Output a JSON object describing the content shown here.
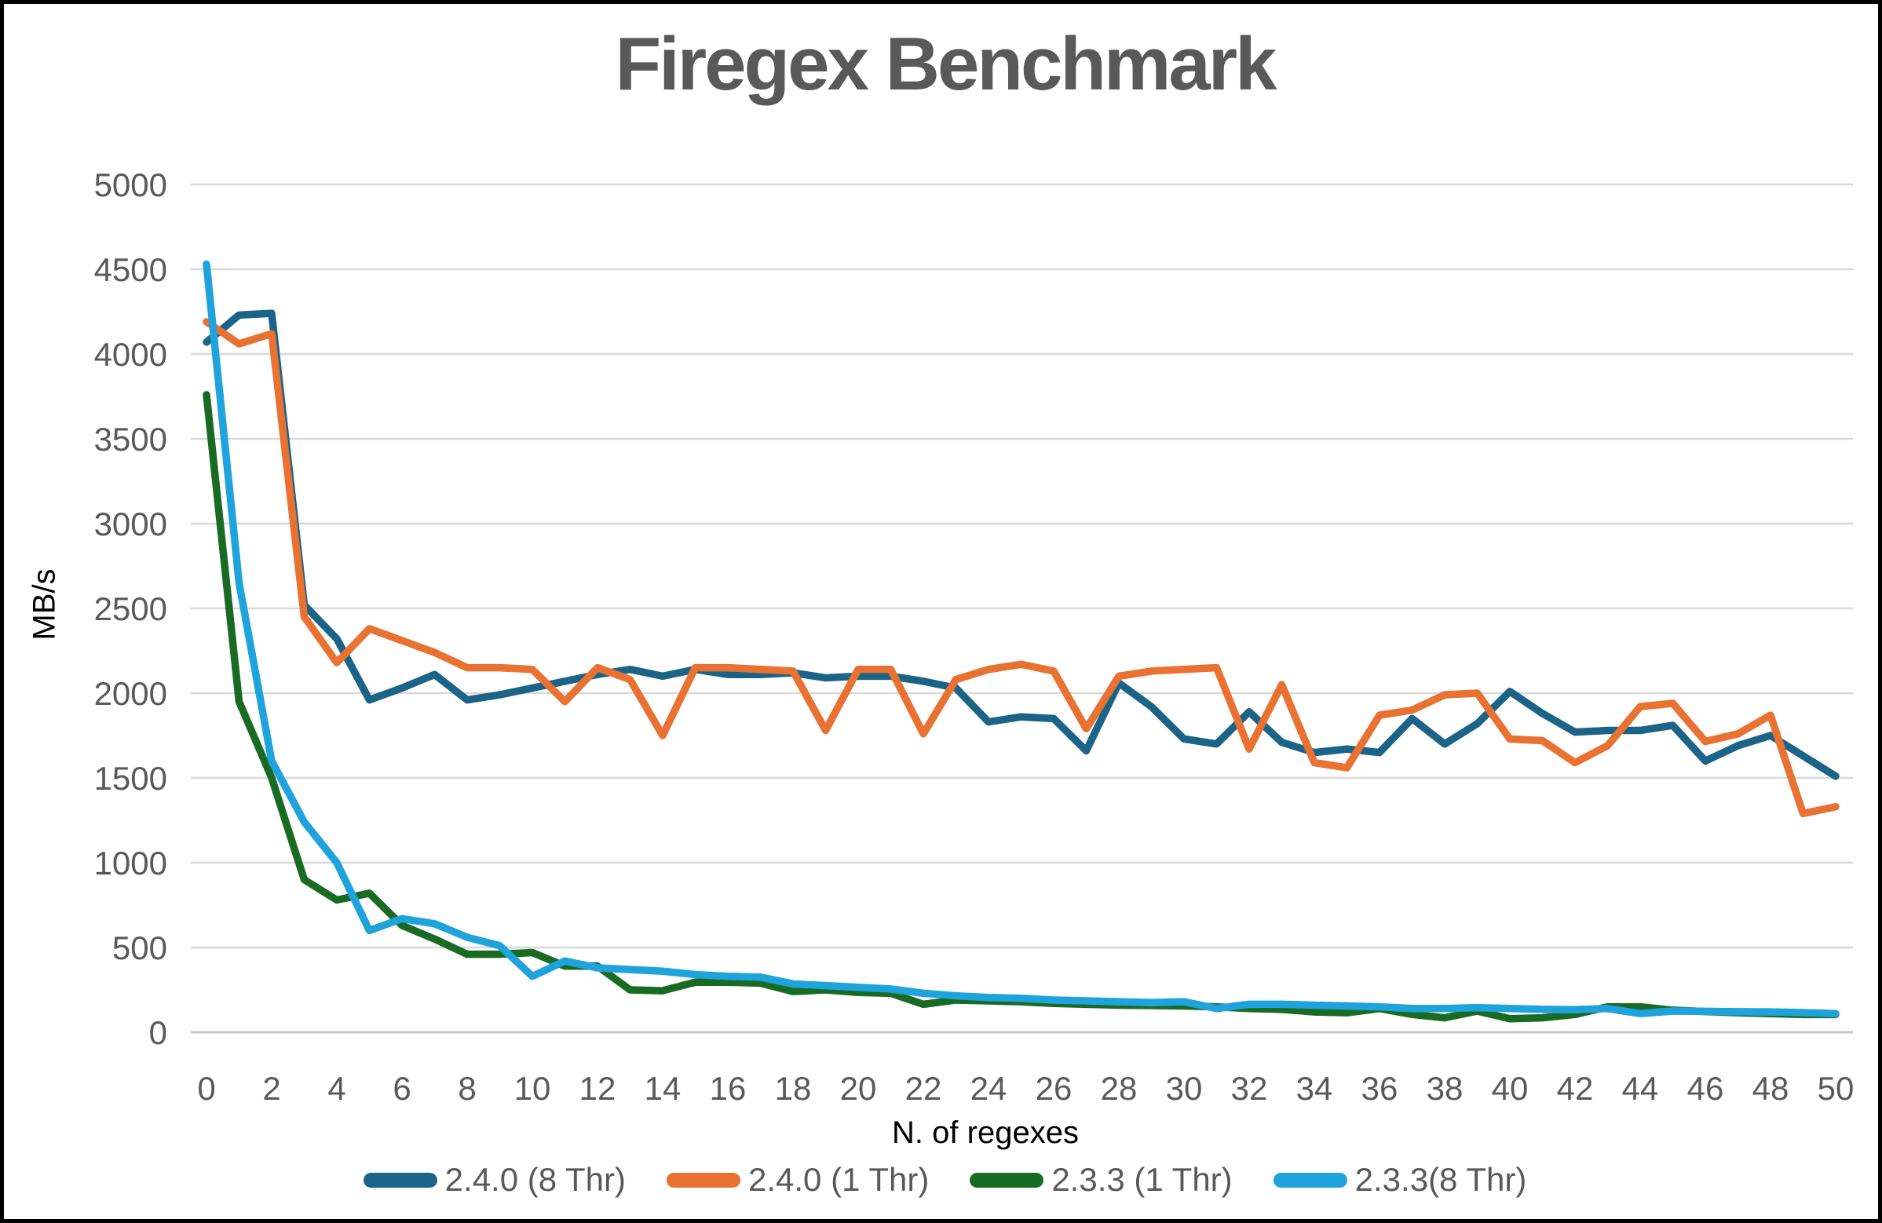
{
  "colors": {
    "background": "#ffffff",
    "border": "#000000",
    "gridline": "#d9d9d9",
    "axis_line": "#c6c6c6",
    "tick_label": "#595959",
    "title": "#595959",
    "axis_title": "#000000",
    "legend_label": "#595959"
  },
  "chart_data": {
    "type": "line",
    "title": "Firegex Benchmark",
    "xlabel": "N. of regexes",
    "ylabel": "MB/s",
    "ylim": [
      0,
      5000
    ],
    "y_tick_step": 500,
    "x_tick_step": 2,
    "grid": true,
    "legend_position": "bottom",
    "x": [
      0,
      1,
      2,
      3,
      4,
      5,
      6,
      7,
      8,
      9,
      10,
      11,
      12,
      13,
      14,
      15,
      16,
      17,
      18,
      19,
      20,
      21,
      22,
      23,
      24,
      25,
      26,
      27,
      28,
      29,
      30,
      31,
      32,
      33,
      34,
      35,
      36,
      37,
      38,
      39,
      40,
      41,
      42,
      43,
      44,
      45,
      46,
      47,
      48,
      49,
      50
    ],
    "series": [
      {
        "name": "2.4.0 (8 Thr)",
        "color": "#1B6487",
        "values": [
          4070,
          4230,
          4240,
          2520,
          2320,
          1960,
          2030,
          2110,
          1960,
          1990,
          2030,
          2070,
          2110,
          2140,
          2100,
          2140,
          2110,
          2110,
          2120,
          2090,
          2100,
          2100,
          2070,
          2030,
          1830,
          1860,
          1850,
          1660,
          2060,
          1920,
          1730,
          1700,
          1890,
          1710,
          1650,
          1670,
          1650,
          1850,
          1700,
          1820,
          2010,
          1880,
          1770,
          1780,
          1780,
          1810,
          1600,
          1690,
          1750,
          1630,
          1510
        ]
      },
      {
        "name": "2.4.0 (1 Thr)",
        "color": "#E97132",
        "values": [
          4190,
          4060,
          4120,
          2450,
          2180,
          2380,
          2310,
          2240,
          2150,
          2150,
          2140,
          1950,
          2150,
          2080,
          1750,
          2150,
          2150,
          2140,
          2130,
          1780,
          2140,
          2140,
          1760,
          2080,
          2140,
          2170,
          2130,
          1790,
          2100,
          2130,
          2140,
          2150,
          1670,
          2050,
          1590,
          1560,
          1870,
          1900,
          1990,
          2000,
          1730,
          1720,
          1590,
          1690,
          1920,
          1940,
          1715,
          1760,
          1870,
          1290,
          1330
        ]
      },
      {
        "name": "2.3.3 (1 Thr)",
        "color": "#196B24",
        "values": [
          3760,
          1950,
          1500,
          900,
          780,
          820,
          630,
          550,
          460,
          460,
          470,
          390,
          390,
          250,
          245,
          295,
          295,
          290,
          240,
          250,
          235,
          230,
          165,
          190,
          185,
          180,
          170,
          165,
          160,
          158,
          155,
          150,
          140,
          135,
          120,
          115,
          140,
          105,
          85,
          125,
          80,
          85,
          105,
          150,
          150,
          130,
          122,
          115,
          110,
          105,
          105
        ]
      },
      {
        "name": "2.3.3(8 Thr)",
        "color": "#1FA3DC",
        "values": [
          4530,
          2650,
          1600,
          1240,
          1000,
          600,
          670,
          640,
          560,
          510,
          330,
          420,
          380,
          370,
          360,
          340,
          330,
          325,
          285,
          275,
          265,
          255,
          230,
          215,
          205,
          200,
          190,
          185,
          180,
          175,
          180,
          140,
          165,
          165,
          160,
          155,
          150,
          140,
          140,
          145,
          140,
          135,
          133,
          140,
          110,
          125,
          123,
          121,
          120,
          116,
          110
        ]
      }
    ]
  }
}
